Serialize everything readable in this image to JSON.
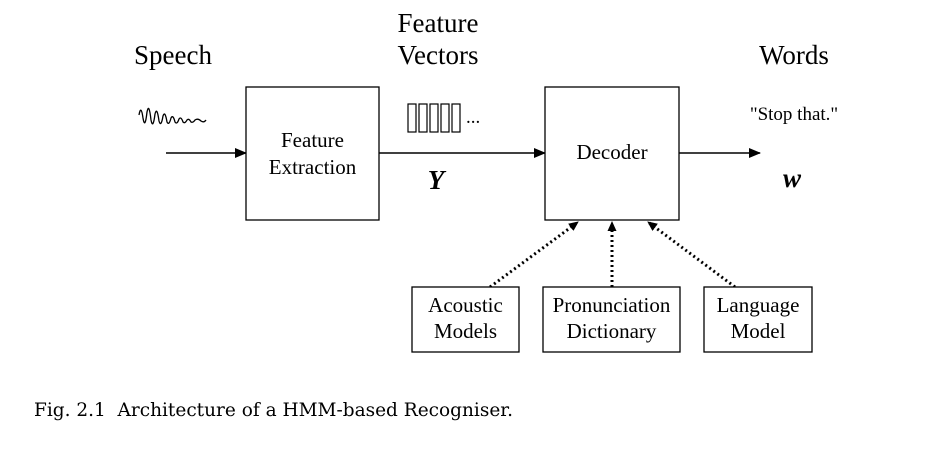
{
  "diagram": {
    "input_label": "Speech",
    "feature_vectors_label": [
      "Feature",
      "Vectors"
    ],
    "output_label": "Words",
    "output_example": "\"Stop that.\"",
    "feature_symbol": "Y",
    "word_symbol": "w",
    "feature_ellipsis": "...",
    "feature_vector_count": 5,
    "boxes": {
      "feature_extraction": [
        "Feature",
        "Extraction"
      ],
      "decoder": [
        "Decoder"
      ],
      "acoustic_models": [
        "Acoustic",
        "Models"
      ],
      "pronunciation_dictionary": [
        "Pronunciation",
        "Dictionary"
      ],
      "language_model": [
        "Language",
        "Model"
      ]
    }
  },
  "caption": "Fig. 2.1  Architecture of a HMM-based Recogniser."
}
